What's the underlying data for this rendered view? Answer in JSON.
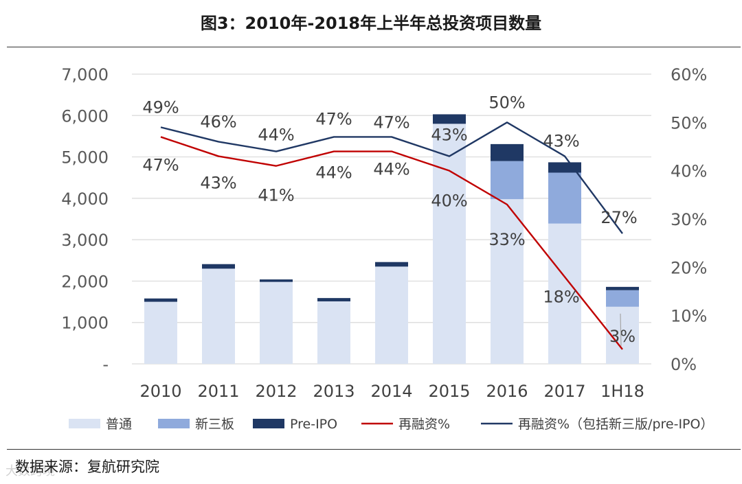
{
  "title": "图3：2010年-2018年上半年总投资项目数量",
  "source": "数据来源：复航研究院",
  "watermark": "大数跨境",
  "chart_data": {
    "type": "bar",
    "stacked": true,
    "title": "图3：2010年-2018年上半年总投资项目数量",
    "categories": [
      "2010",
      "2011",
      "2012",
      "2013",
      "2014",
      "2015",
      "2016",
      "2017",
      "1H18"
    ],
    "y_left": {
      "ylim": [
        0,
        7000
      ],
      "ticks": [
        0,
        1000,
        2000,
        3000,
        4000,
        5000,
        6000,
        7000
      ],
      "tick_labels": [
        "-",
        "1,000",
        "2,000",
        "3,000",
        "4,000",
        "5,000",
        "6,000",
        "7,000"
      ]
    },
    "y_right": {
      "ylim": [
        0,
        60
      ],
      "ticks": [
        0,
        10,
        20,
        30,
        40,
        50,
        60
      ],
      "tick_labels": [
        "0%",
        "10%",
        "20%",
        "30%",
        "40%",
        "50%",
        "60%"
      ]
    },
    "series": [
      {
        "name": "普通",
        "kind": "bar",
        "color": "#dae3f3",
        "values": [
          1500,
          2300,
          1980,
          1510,
          2350,
          5800,
          3980,
          3390,
          1380
        ]
      },
      {
        "name": "新三板",
        "kind": "bar",
        "color": "#8faadc",
        "values": [
          0,
          0,
          0,
          0,
          0,
          0,
          920,
          1230,
          400
        ]
      },
      {
        "name": "Pre-IPO",
        "kind": "bar",
        "color": "#1f3864",
        "values": [
          80,
          110,
          60,
          80,
          110,
          230,
          410,
          250,
          80
        ]
      },
      {
        "name": "再融资%",
        "kind": "line",
        "axis": "right",
        "color": "#c00000",
        "values": [
          47,
          43,
          41,
          44,
          44,
          40,
          33,
          18,
          3
        ],
        "labels": [
          "47%",
          "43%",
          "41%",
          "44%",
          "44%",
          "40%",
          "33%",
          "18%",
          "3%"
        ]
      },
      {
        "name": "再融资%（包括新三版/pre-IPO）",
        "kind": "line",
        "axis": "right",
        "color": "#203864",
        "values": [
          49,
          46,
          44,
          47,
          47,
          43,
          50,
          43,
          27
        ],
        "labels": [
          "49%",
          "46%",
          "44%",
          "47%",
          "47%",
          "43%",
          "50%",
          "43%",
          "27%"
        ]
      }
    ],
    "legend": [
      "普通",
      "新三板",
      "Pre-IPO",
      "再融资%",
      "再融资%（包括新三版/pre-IPO）"
    ],
    "legend_position": "bottom",
    "grid": true
  }
}
